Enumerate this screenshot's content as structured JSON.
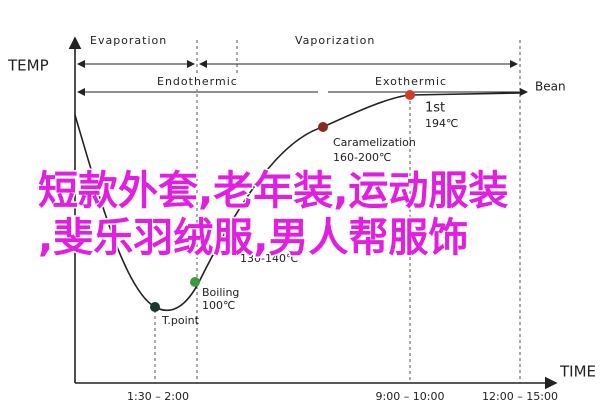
{
  "axes": {
    "y_label": "TEMP",
    "x_label": "TIME"
  },
  "phases": [
    "Evaporation",
    "Vaporization"
  ],
  "reactions": [
    "Endothermic",
    "Exothermic"
  ],
  "bean_label": "Bean",
  "points": [
    {
      "label": "T.point"
    },
    {
      "label": "Boiling",
      "temp": "100℃"
    },
    {
      "temp": "130-140℃"
    },
    {
      "label": "Caramelization",
      "temp": "160-200℃"
    },
    {
      "label": "1st",
      "temp": "194℃"
    }
  ],
  "time_labels": [
    "1:30 – 2:00",
    "9:00 – 10:00",
    "12:00 – 15:00"
  ],
  "overlay": [
    "短款外套,老年装,运动服装",
    ",斐乐羽绒服,男人帮服饰"
  ]
}
